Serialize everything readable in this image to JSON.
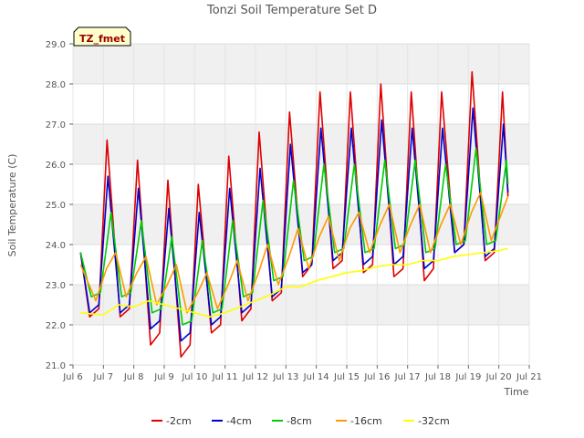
{
  "chart_data": {
    "type": "line",
    "title": "Tonzi Soil Temperature Set D",
    "xlabel": "Time",
    "ylabel": "Soil Temperature (C)",
    "badge": "TZ_fmet",
    "xlim": [
      6,
      21
    ],
    "ylim": [
      21.0,
      29.0
    ],
    "x_ticks": [
      6,
      7,
      8,
      9,
      10,
      11,
      12,
      13,
      14,
      15,
      16,
      17,
      18,
      19,
      20,
      21
    ],
    "x_tick_labels": [
      "Jul 6",
      "Jul 7",
      "Jul 8",
      "Jul 9",
      "Jul 10",
      "Jul 11",
      "Jul 12",
      "Jul 13",
      "Jul 14",
      "Jul 15",
      "Jul 16",
      "Jul 17",
      "Jul 18",
      "Jul 19",
      "Jul 20",
      "Jul 21"
    ],
    "y_ticks": [
      21,
      22,
      23,
      24,
      25,
      26,
      27,
      28,
      29
    ],
    "y_tick_labels": [
      "21.0",
      "22.0",
      "23.0",
      "24.0",
      "25.0",
      "26.0",
      "27.0",
      "28.0",
      "29.0"
    ],
    "grid": true,
    "legend_position": "bottom",
    "series": [
      {
        "name": "-2cm",
        "color": "#dd0000",
        "x": [
          6.25,
          6.55,
          6.85,
          7.12,
          7.55,
          7.85,
          8.12,
          8.55,
          8.85,
          9.12,
          9.55,
          9.85,
          10.12,
          10.55,
          10.85,
          11.12,
          11.55,
          11.85,
          12.12,
          12.55,
          12.85,
          13.12,
          13.55,
          13.85,
          14.12,
          14.55,
          14.85,
          15.12,
          15.55,
          15.85,
          16.12,
          16.55,
          16.85,
          17.12,
          17.55,
          17.85,
          18.12,
          18.55,
          18.85,
          19.12,
          19.55,
          19.85,
          20.12,
          20.3
        ],
        "y": [
          23.8,
          22.2,
          22.4,
          26.6,
          22.2,
          22.4,
          26.1,
          21.5,
          21.8,
          25.6,
          21.2,
          21.5,
          25.5,
          21.8,
          22.0,
          26.2,
          22.1,
          22.4,
          26.8,
          22.6,
          22.8,
          27.3,
          23.2,
          23.5,
          27.8,
          23.4,
          23.6,
          27.8,
          23.3,
          23.5,
          28.0,
          23.2,
          23.4,
          27.8,
          23.1,
          23.4,
          27.8,
          23.8,
          24.0,
          28.3,
          23.6,
          23.8,
          27.8,
          25.2
        ]
      },
      {
        "name": "-4cm",
        "color": "#0000cc",
        "x": [
          6.25,
          6.55,
          6.85,
          7.15,
          7.55,
          7.85,
          8.15,
          8.55,
          8.85,
          9.15,
          9.55,
          9.85,
          10.15,
          10.55,
          10.85,
          11.15,
          11.55,
          11.85,
          12.15,
          12.55,
          12.85,
          13.15,
          13.55,
          13.85,
          14.15,
          14.55,
          14.85,
          15.15,
          15.55,
          15.85,
          16.15,
          16.55,
          16.85,
          17.15,
          17.55,
          17.85,
          18.15,
          18.55,
          18.85,
          19.15,
          19.55,
          19.85,
          20.15,
          20.3
        ],
        "y": [
          23.8,
          22.3,
          22.5,
          25.7,
          22.3,
          22.5,
          25.4,
          21.9,
          22.1,
          24.9,
          21.6,
          21.8,
          24.8,
          22.0,
          22.2,
          25.4,
          22.3,
          22.5,
          25.9,
          22.7,
          22.9,
          26.5,
          23.3,
          23.5,
          26.9,
          23.6,
          23.8,
          26.9,
          23.5,
          23.7,
          27.1,
          23.5,
          23.7,
          26.9,
          23.4,
          23.6,
          26.9,
          23.8,
          24.0,
          27.4,
          23.7,
          23.9,
          27.0,
          25.3
        ]
      },
      {
        "name": "-8cm",
        "color": "#00cc00",
        "x": [
          6.25,
          6.6,
          6.9,
          7.25,
          7.6,
          7.9,
          8.25,
          8.6,
          8.9,
          9.25,
          9.6,
          9.9,
          10.25,
          10.6,
          10.9,
          11.25,
          11.6,
          11.9,
          12.25,
          12.6,
          12.9,
          13.25,
          13.6,
          13.9,
          14.25,
          14.6,
          14.9,
          15.25,
          15.6,
          15.9,
          16.25,
          16.6,
          16.9,
          17.25,
          17.6,
          17.9,
          18.25,
          18.6,
          18.9,
          19.25,
          19.6,
          19.9,
          20.25,
          20.3
        ],
        "y": [
          23.8,
          22.7,
          22.8,
          24.8,
          22.7,
          22.8,
          24.6,
          22.3,
          22.4,
          24.2,
          22.0,
          22.1,
          24.1,
          22.3,
          22.4,
          24.6,
          22.7,
          22.8,
          25.1,
          23.1,
          23.2,
          25.6,
          23.6,
          23.7,
          26.0,
          23.8,
          23.9,
          26.0,
          23.8,
          23.9,
          26.1,
          23.9,
          24.0,
          26.1,
          23.8,
          23.9,
          26.0,
          24.0,
          24.1,
          26.4,
          24.0,
          24.1,
          26.1,
          25.5
        ]
      },
      {
        "name": "-16cm",
        "color": "#ff9900",
        "x": [
          6.25,
          6.75,
          7.1,
          7.4,
          7.75,
          8.1,
          8.4,
          8.75,
          9.1,
          9.4,
          9.75,
          10.1,
          10.4,
          10.75,
          11.1,
          11.4,
          11.75,
          12.1,
          12.4,
          12.75,
          13.1,
          13.4,
          13.75,
          14.1,
          14.4,
          14.75,
          15.1,
          15.4,
          15.75,
          16.1,
          16.4,
          16.75,
          17.1,
          17.4,
          17.75,
          18.1,
          18.4,
          18.75,
          19.1,
          19.4,
          19.75,
          20.1,
          20.3
        ],
        "y": [
          23.5,
          22.6,
          23.4,
          23.8,
          22.7,
          23.3,
          23.7,
          22.5,
          23.0,
          23.5,
          22.3,
          22.8,
          23.3,
          22.4,
          23.0,
          23.6,
          22.6,
          23.3,
          24.0,
          23.0,
          23.7,
          24.4,
          23.4,
          24.2,
          24.7,
          23.6,
          24.4,
          24.8,
          23.8,
          24.5,
          25.0,
          23.8,
          24.5,
          25.0,
          23.8,
          24.5,
          25.0,
          24.0,
          24.8,
          25.3,
          24.1,
          24.8,
          25.2
        ]
      },
      {
        "name": "-32cm",
        "color": "#ffff00",
        "x": [
          6.25,
          7.0,
          7.5,
          8.0,
          8.5,
          9.0,
          9.5,
          10.0,
          10.5,
          11.0,
          11.5,
          12.0,
          12.5,
          13.0,
          13.5,
          14.0,
          14.5,
          15.0,
          15.5,
          16.0,
          16.5,
          17.0,
          17.5,
          18.0,
          18.5,
          19.0,
          19.5,
          20.0,
          20.3
        ],
        "y": [
          22.3,
          22.25,
          22.5,
          22.45,
          22.6,
          22.5,
          22.4,
          22.3,
          22.2,
          22.3,
          22.45,
          22.6,
          22.75,
          22.95,
          22.95,
          23.1,
          23.2,
          23.3,
          23.35,
          23.45,
          23.5,
          23.5,
          23.6,
          23.6,
          23.7,
          23.75,
          23.8,
          23.85,
          23.9
        ]
      }
    ]
  }
}
